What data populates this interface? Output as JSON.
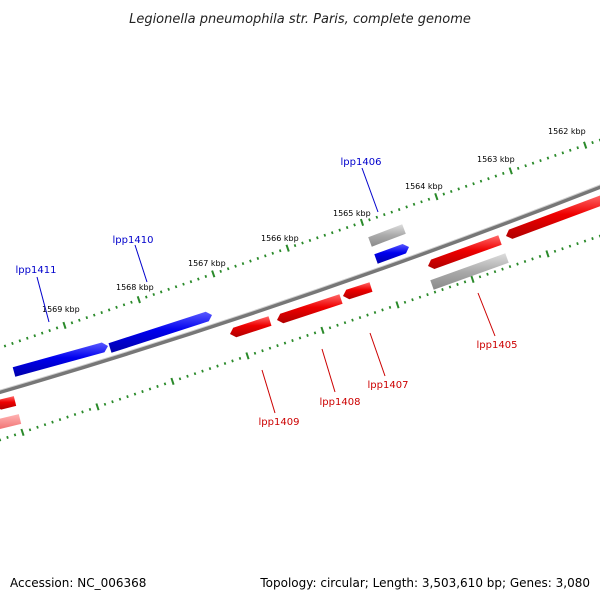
{
  "title": "Legionella pneumophila str. Paris, complete genome",
  "footer": {
    "accession": "Accession: NC_006368",
    "summary": "Topology: circular; Length: 3,503,610 bp; Genes: 3,080"
  },
  "colors": {
    "forward": "#0000ee",
    "reverse": "#ee0000",
    "gray": "#a8a8a8",
    "backbone": "#777777",
    "ticks": "#2a8a2a",
    "label_forward": "#0000cc",
    "label_reverse": "#cc0000"
  },
  "scale_kbp": [
    "1562 kbp",
    "1563 kbp",
    "1564 kbp",
    "1565 kbp",
    "1566 kbp",
    "1567 kbp",
    "1568 kbp",
    "1569 kbp"
  ],
  "genes_labeled": [
    {
      "name": "lpp1411",
      "strand": "forward"
    },
    {
      "name": "lpp1410",
      "strand": "forward"
    },
    {
      "name": "lpp1406",
      "strand": "forward"
    },
    {
      "name": "lpp1409",
      "strand": "reverse"
    },
    {
      "name": "lpp1408",
      "strand": "reverse"
    },
    {
      "name": "lpp1407",
      "strand": "reverse"
    },
    {
      "name": "lpp1405",
      "strand": "reverse"
    }
  ]
}
